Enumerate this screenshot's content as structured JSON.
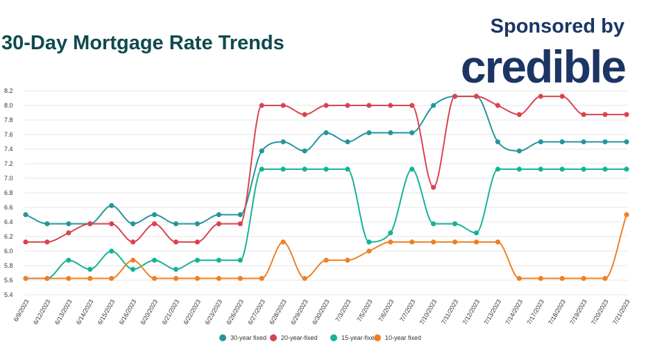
{
  "header": {
    "title": "30-Day Mortgage Rate Trends",
    "sponsor_text": "Sponsored by",
    "brand": "credible"
  },
  "colors": {
    "title": "#0f4a4f",
    "brand": "#1c3565",
    "grid": "#e6e6e6",
    "axis_text": "#333333"
  },
  "chart_data": {
    "type": "line",
    "title": "30-Day Mortgage Rate Trends",
    "xlabel": "",
    "ylabel": "",
    "ylim": [
      5.4,
      8.2
    ],
    "yticks": [
      5.4,
      5.6,
      5.8,
      6.0,
      6.2,
      6.4,
      6.6,
      6.8,
      7.0,
      7.2,
      7.4,
      7.6,
      7.8,
      8.0,
      8.2
    ],
    "grid": true,
    "legend_position": "bottom-center",
    "categories": [
      "6/9/2023",
      "6/12/2023",
      "6/13/2023",
      "6/14/2023",
      "6/15/2023",
      "6/16/2023",
      "6/20/2023",
      "6/21/2023",
      "6/22/2023",
      "6/23/2023",
      "6/26/2023",
      "6/27/2023",
      "6/28/2023",
      "6/29/2023",
      "6/30/2023",
      "7/3/2023",
      "7/5/2023",
      "7/6/2023",
      "7/7/2023",
      "7/10/2023",
      "7/11/2023",
      "7/12/2023",
      "7/13/2023",
      "7/14/2023",
      "7/17/2023",
      "7/18/2023",
      "7/19/2023",
      "7/20/2023",
      "7/21/2023"
    ],
    "series": [
      {
        "name": "30-year fixed",
        "color": "#23969a",
        "values": [
          6.5,
          6.375,
          6.375,
          6.375,
          6.625,
          6.375,
          6.5,
          6.375,
          6.375,
          6.5,
          6.5,
          7.375,
          7.5,
          7.375,
          7.625,
          7.5,
          7.625,
          7.625,
          7.625,
          8.0,
          8.125,
          8.125,
          7.5,
          7.375,
          7.5,
          7.5,
          7.5,
          7.5,
          7.5
        ]
      },
      {
        "name": "20-year-fixed",
        "color": "#d9434f",
        "values": [
          6.125,
          6.125,
          6.25,
          6.375,
          6.375,
          6.125,
          6.375,
          6.125,
          6.125,
          6.375,
          6.375,
          8.0,
          8.0,
          7.875,
          8.0,
          8.0,
          8.0,
          8.0,
          8.0,
          6.875,
          8.125,
          8.125,
          8.0,
          7.875,
          8.125,
          8.125,
          7.875,
          7.875,
          7.875
        ]
      },
      {
        "name": "15-year-fixed",
        "color": "#14b396",
        "values": [
          5.625,
          5.625,
          5.875,
          5.75,
          6.0,
          5.75,
          5.875,
          5.75,
          5.875,
          5.875,
          5.875,
          7.125,
          7.125,
          7.125,
          7.125,
          7.125,
          6.125,
          6.25,
          7.125,
          6.375,
          6.375,
          6.25,
          7.125,
          7.125,
          7.125,
          7.125,
          7.125,
          7.125,
          7.125
        ]
      },
      {
        "name": "10-year fixed",
        "color": "#ee8024",
        "values": [
          5.625,
          5.625,
          5.625,
          5.625,
          5.625,
          5.875,
          5.625,
          5.625,
          5.625,
          5.625,
          5.625,
          5.625,
          6.125,
          5.625,
          5.875,
          5.875,
          6.0,
          6.125,
          6.125,
          6.125,
          6.125,
          6.125,
          6.125,
          5.625,
          5.625,
          5.625,
          5.625,
          5.625,
          6.5
        ]
      }
    ]
  }
}
